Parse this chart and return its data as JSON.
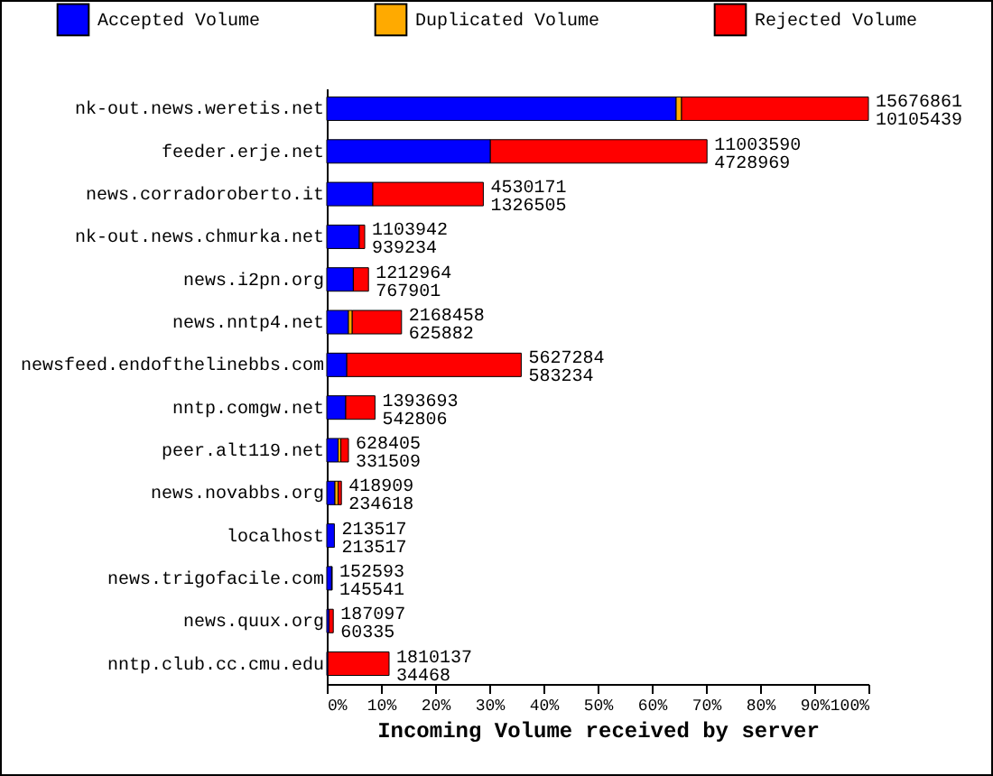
{
  "chart_data": {
    "type": "bar",
    "orientation": "horizontal",
    "stacked": true,
    "xlabel": "Incoming Volume received by server",
    "legend": "top",
    "categories": [
      "nk-out.news.weretis.net",
      "feeder.erje.net",
      "news.corradoroberto.it",
      "nk-out.news.chmurka.net",
      "news.i2pn.org",
      "news.nntp4.net",
      "newsfeed.endofthelinebbs.com",
      "nntp.comgw.net",
      "peer.alt119.net",
      "news.novabbs.org",
      "localhost",
      "news.trigofacile.com",
      "news.quux.org",
      "nntp.club.cc.cmu.edu"
    ],
    "series": [
      {
        "name": "Accepted Volume",
        "color": "#0000ff",
        "values": [
          64.5,
          30.2,
          8.5,
          6.0,
          4.9,
          4.0,
          3.7,
          3.5,
          2.1,
          1.5,
          1.4,
          0.9,
          0.4,
          0.2
        ]
      },
      {
        "name": "Duplicated Volume",
        "color": "#ffaa00",
        "values": [
          1.0,
          0,
          0,
          0,
          0,
          0.7,
          0,
          0,
          0.5,
          0.6,
          0,
          0,
          0,
          0
        ]
      },
      {
        "name": "Rejected Volume",
        "color": "#ff0000",
        "values": [
          34.5,
          40.0,
          20.4,
          1.0,
          2.8,
          9.1,
          32.2,
          5.4,
          1.4,
          0.6,
          0,
          0.1,
          0.8,
          11.3
        ]
      }
    ],
    "xlim": [
      0,
      100
    ],
    "xticks": [
      {
        "value": 0,
        "label": "0%"
      },
      {
        "value": 10,
        "label": "10%"
      },
      {
        "value": 20,
        "label": "20%"
      },
      {
        "value": 30,
        "label": "30%"
      },
      {
        "value": 40,
        "label": "40%"
      },
      {
        "value": 50,
        "label": "50%"
      },
      {
        "value": 60,
        "label": "60%"
      },
      {
        "value": 70,
        "label": "70%"
      },
      {
        "value": 80,
        "label": "80%"
      },
      {
        "value": 90,
        "label": "90%"
      },
      {
        "value": 100,
        "label": "100%"
      }
    ],
    "annotations": [
      {
        "text": "15676861",
        "x": 100,
        "y": "nk-out.news.weretis.net"
      },
      {
        "text": "10105439",
        "x": 100,
        "y": "nk-out.news.weretis.net"
      },
      {
        "text": "11003590",
        "x": 70.2,
        "y": "feeder.erje.net"
      },
      {
        "text": "4728969",
        "x": 70.2,
        "y": "feeder.erje.net"
      },
      {
        "text": "4530171",
        "x": 28.9,
        "y": "news.corradoroberto.it"
      },
      {
        "text": "1326505",
        "x": 28.9,
        "y": "news.corradoroberto.it"
      },
      {
        "text": "1103942",
        "x": 7.0,
        "y": "nk-out.news.chmurka.net"
      },
      {
        "text": "939234",
        "x": 7.0,
        "y": "nk-out.news.chmurka.net"
      },
      {
        "text": "1212964",
        "x": 7.7,
        "y": "news.i2pn.org"
      },
      {
        "text": "767901",
        "x": 7.7,
        "y": "news.i2pn.org"
      },
      {
        "text": "2168458",
        "x": 13.8,
        "y": "news.nntp4.net"
      },
      {
        "text": "625882",
        "x": 13.8,
        "y": "news.nntp4.net"
      },
      {
        "text": "5627284",
        "x": 35.9,
        "y": "newsfeed.endofthelinebbs.com"
      },
      {
        "text": "583234",
        "x": 35.9,
        "y": "newsfeed.endofthelinebbs.com"
      },
      {
        "text": "1393693",
        "x": 8.9,
        "y": "nntp.comgw.net"
      },
      {
        "text": "542806",
        "x": 8.9,
        "y": "nntp.comgw.net"
      },
      {
        "text": "628405",
        "x": 4.0,
        "y": "peer.alt119.net"
      },
      {
        "text": "331509",
        "x": 4.0,
        "y": "peer.alt119.net"
      },
      {
        "text": "418909",
        "x": 2.7,
        "y": "news.novabbs.org"
      },
      {
        "text": "234618",
        "x": 2.7,
        "y": "news.novabbs.org"
      },
      {
        "text": "213517",
        "x": 1.4,
        "y": "localhost"
      },
      {
        "text": "213517",
        "x": 1.4,
        "y": "localhost"
      },
      {
        "text": "152593",
        "x": 1.0,
        "y": "news.trigofacile.com"
      },
      {
        "text": "145541",
        "x": 1.0,
        "y": "news.trigofacile.com"
      },
      {
        "text": "187097",
        "x": 1.2,
        "y": "news.quux.org"
      },
      {
        "text": "60335",
        "x": 1.2,
        "y": "news.quux.org"
      },
      {
        "text": "1810137",
        "x": 11.5,
        "y": "nntp.club.cc.cmu.edu"
      },
      {
        "text": "34468",
        "x": 11.5,
        "y": "nntp.club.cc.cmu.edu"
      }
    ]
  }
}
